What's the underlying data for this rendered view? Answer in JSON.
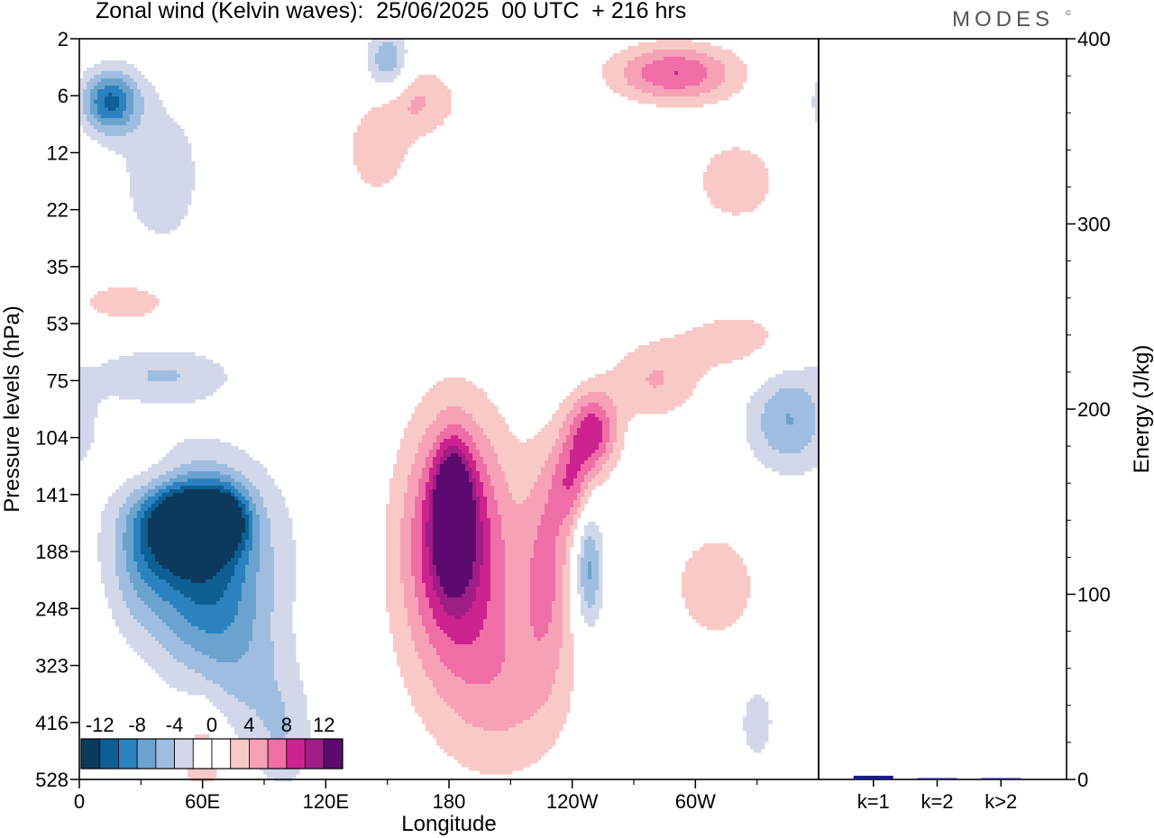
{
  "header": {
    "title": "Zonal wind (Kelvin waves):  25/06/2025  00 UTC  + 216 hrs",
    "brand": "MODES",
    "brand_mark": "©"
  },
  "palette": {
    "levels": [
      -14,
      -12,
      -10,
      -8,
      -6,
      -4,
      -2,
      0,
      2,
      4,
      6,
      8,
      10,
      12,
      14
    ],
    "colors": [
      "#0b3a5c",
      "#0e5f93",
      "#2b82be",
      "#6ba3cf",
      "#9fbde0",
      "#d2d7ea",
      "#ffffff",
      "#ffffff",
      "#f8c9c7",
      "#f7a1b7",
      "#ef6ea6",
      "#cc2390",
      "#a01d85",
      "#5c0a6e"
    ]
  },
  "chart_data": [
    {
      "type": "heatmap",
      "title": "Zonal wind (Kelvin waves):  25/06/2025  00 UTC  + 216 hrs",
      "xlabel": "Longitude",
      "ylabel": "Pressure levels (hPa)",
      "x_ticks": [
        "0",
        "60E",
        "120E",
        "180",
        "120W",
        "60W"
      ],
      "x_tick_deg": [
        0,
        60,
        120,
        180,
        240,
        300
      ],
      "xlim": [
        0,
        360
      ],
      "y_ticks": [
        "2",
        "6",
        "12",
        "22",
        "35",
        "53",
        "75",
        "104",
        "141",
        "188",
        "248",
        "323",
        "416",
        "528"
      ],
      "colorbar_ticks": [
        "-12",
        "-8",
        "-4",
        "0",
        "4",
        "8",
        "12"
      ],
      "blobs": [
        {
          "lon": 50,
          "lev": 8.45,
          "v": -12,
          "a": 17,
          "b": 0.75
        },
        {
          "lon": 70,
          "lev": 8.45,
          "v": -11,
          "a": 12,
          "b": 0.55
        },
        {
          "lon": 58,
          "lev": 8.9,
          "v": -7,
          "a": 40,
          "b": 1.6
        },
        {
          "lon": 62,
          "lev": 9.9,
          "v": -5,
          "a": 25,
          "b": 1.6
        },
        {
          "lon": 85,
          "lev": 11.2,
          "v": -3,
          "a": 22,
          "b": 1.3
        },
        {
          "lon": 30,
          "lev": 9.0,
          "v": -3,
          "a": 14,
          "b": 1.3
        },
        {
          "lon": 182,
          "lev": 8.3,
          "v": 13,
          "a": 8,
          "b": 1.0
        },
        {
          "lon": 182,
          "lev": 8.7,
          "v": 9,
          "a": 22,
          "b": 2.0
        },
        {
          "lon": 190,
          "lev": 9.6,
          "v": 4,
          "a": 38,
          "b": 2.7
        },
        {
          "lon": 210,
          "lev": 11.5,
          "v": 3,
          "a": 30,
          "b": 1.5
        },
        {
          "lon": 228,
          "lev": 9.2,
          "v": 5,
          "a": 12,
          "b": 1.9
        },
        {
          "lon": 250,
          "lev": 6.9,
          "v": 9,
          "a": 12,
          "b": 0.7
        },
        {
          "lon": 240,
          "lev": 7.8,
          "v": 6,
          "a": 10,
          "b": 0.8
        },
        {
          "lon": 280,
          "lev": 6.0,
          "v": 4,
          "a": 22,
          "b": 0.7
        },
        {
          "lon": 248,
          "lev": 9.3,
          "v": -7,
          "a": 7,
          "b": 1.1
        },
        {
          "lon": 310,
          "lev": 9.6,
          "v": 3,
          "a": 26,
          "b": 1.2
        },
        {
          "lon": 345,
          "lev": 6.7,
          "v": -6,
          "a": 20,
          "b": 0.9
        },
        {
          "lon": 320,
          "lev": 5.3,
          "v": 3,
          "a": 30,
          "b": 0.6
        },
        {
          "lon": 15,
          "lev": 1.1,
          "v": -10,
          "a": 14,
          "b": 0.55
        },
        {
          "lon": 40,
          "lev": 2.4,
          "v": -3,
          "a": 25,
          "b": 1.6
        },
        {
          "lon": 150,
          "lev": 0.4,
          "v": -6,
          "a": 10,
          "b": 0.6
        },
        {
          "lon": 165,
          "lev": 1.1,
          "v": 4,
          "a": 20,
          "b": 0.6
        },
        {
          "lon": 145,
          "lev": 2.0,
          "v": 3,
          "a": 18,
          "b": 0.9
        },
        {
          "lon": 290,
          "lev": 0.6,
          "v": 8,
          "a": 30,
          "b": 0.5
        },
        {
          "lon": 320,
          "lev": 2.5,
          "v": 3,
          "a": 25,
          "b": 0.9
        },
        {
          "lon": 25,
          "lev": 4.6,
          "v": 3,
          "a": 30,
          "b": 0.5
        },
        {
          "lon": 40,
          "lev": 5.9,
          "v": -4,
          "a": 35,
          "b": 0.5
        },
        {
          "lon": 40,
          "lev": 7.7,
          "v": 3,
          "a": 20,
          "b": 0.5
        },
        {
          "lon": 60,
          "lev": 12.6,
          "v": 4,
          "a": 10,
          "b": 0.9
        },
        {
          "lon": 100,
          "lev": 12.3,
          "v": -3,
          "a": 15,
          "b": 1.0
        },
        {
          "lon": 330,
          "lev": 12.0,
          "v": -3,
          "a": 10,
          "b": 0.8
        }
      ]
    },
    {
      "type": "bar",
      "categories": [
        "k=1",
        "k=2",
        "k>2"
      ],
      "values": [
        2,
        0.6,
        0.4
      ],
      "ylabel": "Energy (J/kg)",
      "ylim": [
        0,
        400
      ],
      "y_ticks": [
        "0",
        "100",
        "200",
        "300",
        "400"
      ],
      "bar_colors": [
        "#1a1a8c",
        "#1a1a8c",
        "#1a1a8c"
      ]
    }
  ]
}
